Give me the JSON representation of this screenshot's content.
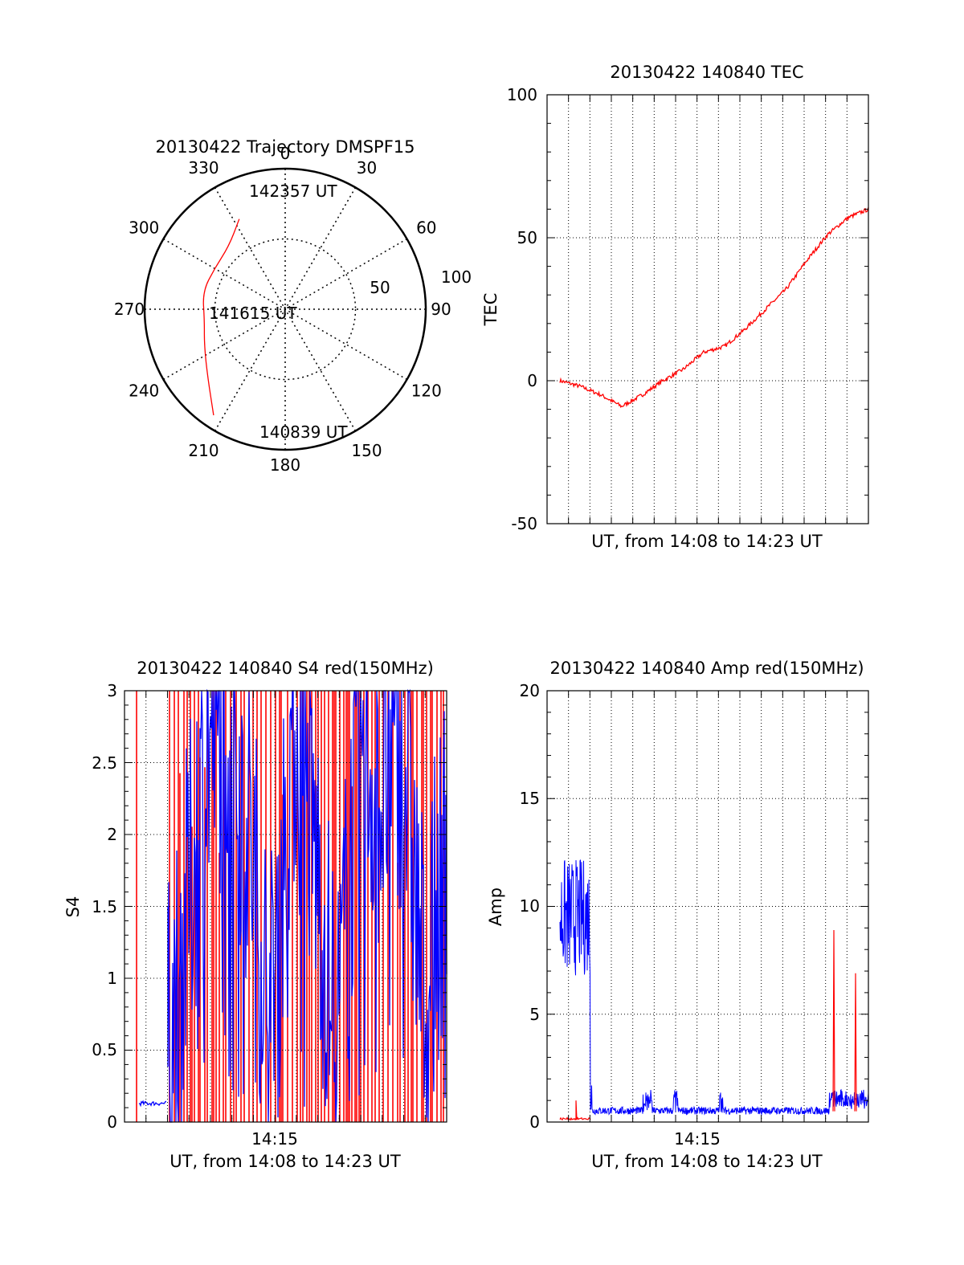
{
  "colors": {
    "red": "#ff0000",
    "blue": "#0000ff",
    "axis": "#000000",
    "grid": "#000000"
  },
  "polar": {
    "title": "20130422 Trajectory DMSPF15",
    "azimuth_labels": [
      "0",
      "30",
      "60",
      "90",
      "120",
      "150",
      "180",
      "210",
      "240",
      "270",
      "300",
      "330"
    ],
    "elevation_labels": [
      "50",
      "100"
    ],
    "annotations": {
      "end": "142357 UT",
      "mid": "141615 UT",
      "start": "140839 UT"
    }
  },
  "tec": {
    "title": "20130422 140840 TEC",
    "ylabel": "TEC",
    "xlabel": "UT, from 14:08 to 14:23 UT",
    "yticks": [
      "100",
      "50",
      "0",
      "-50"
    ]
  },
  "s4": {
    "title": "20130422 140840 S4 red(150MHz)",
    "ylabel": "S4",
    "xlabel": "UT, from 14:08 to 14:23 UT",
    "xtick": "14:15",
    "yticks": [
      "3",
      "2.5",
      "2",
      "1.5",
      "1",
      "0.5",
      "0"
    ]
  },
  "amp": {
    "title": "20130422 140840 Amp red(150MHz)",
    "ylabel": "Amp",
    "xlabel": "UT, from 14:08 to 14:23 UT",
    "xtick": "14:15",
    "yticks": [
      "20",
      "15",
      "10",
      "5",
      "0"
    ]
  },
  "chart_data": [
    {
      "type": "scatter",
      "title": "20130422 Trajectory DMSPF15",
      "projection": "polar",
      "rlim": [
        0,
        100
      ],
      "series": [
        {
          "color": "red",
          "azimuth_deg": [
            333,
            318,
            300,
            282,
            262,
            246,
            228,
            214
          ],
          "radius": [
            72,
            60,
            58,
            60,
            58,
            63,
            74,
            91
          ]
        }
      ],
      "grid": true
    },
    {
      "type": "line",
      "title": "20130422 140840 TEC",
      "xlabel": "UT, from 14:08 to 14:23 UT",
      "ylabel": "TEC",
      "ylim": [
        -50,
        100
      ],
      "x": [
        "14:08:40",
        "14:09:30",
        "14:10:30",
        "14:11:00",
        "14:12:00",
        "14:13:00",
        "14:14:00",
        "14:15:00",
        "14:16:00",
        "14:17:00",
        "14:18:00",
        "14:19:00",
        "14:20:00",
        "14:21:00",
        "14:22:00",
        "14:23:00"
      ],
      "series": [
        {
          "color": "red",
          "values": [
            0,
            -2,
            -5,
            -9,
            -5,
            0,
            4,
            10,
            12,
            18,
            25,
            32,
            42,
            51,
            57,
            60
          ]
        }
      ],
      "grid": true
    },
    {
      "type": "line",
      "title": "20130422 140840 S4 red(150MHz)",
      "xlabel": "UT, from 14:08 to 14:23 UT",
      "ylabel": "S4",
      "ylim": [
        0,
        3
      ],
      "xtick": "14:15",
      "series": [
        {
          "color": "blue",
          "values": [
            0.13,
            0.14,
            1.2,
            2.5,
            2.9,
            2.0,
            0.7,
            2.8,
            1.9,
            0.5,
            2.6,
            2.3,
            2.7,
            0.8,
            2.0
          ]
        },
        {
          "color": "red",
          "note_values": "vertical spikes 0 to 3",
          "values": [
            3,
            0,
            3,
            0,
            3,
            1.7,
            3,
            0,
            3
          ]
        }
      ],
      "grid": true
    },
    {
      "type": "line",
      "title": "20130422 140840 Amp red(150MHz)",
      "xlabel": "UT, from 14:08 to 14:23 UT",
      "ylabel": "Amp",
      "ylim": [
        0,
        20
      ],
      "xtick": "14:15",
      "series": [
        {
          "color": "blue",
          "values": [
            9,
            11,
            8,
            0.3,
            0.5,
            1,
            0.4,
            1.2,
            0.3,
            0.4,
            0.5,
            0.3,
            1.3,
            0.5
          ]
        },
        {
          "color": "red",
          "values": [
            0.1,
            0.1,
            1.0,
            0.1,
            8.9,
            0.2,
            6.9,
            0.1
          ]
        }
      ],
      "grid": true
    }
  ]
}
